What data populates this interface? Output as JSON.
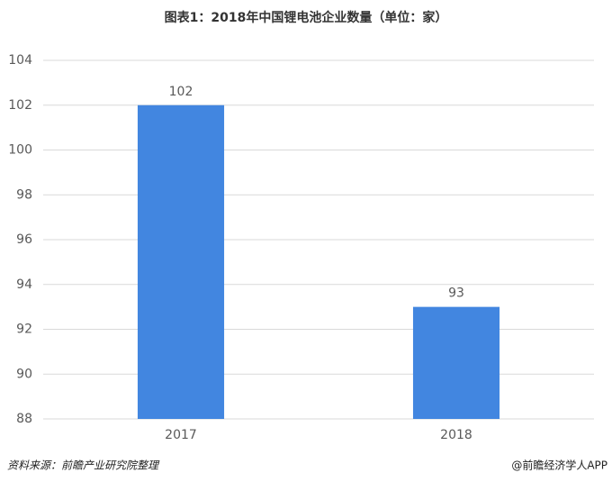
{
  "chart_data": {
    "type": "bar",
    "title": "图表1：2018年中国锂电池企业数量（单位：家）",
    "categories": [
      "2017",
      "2018"
    ],
    "values": [
      102,
      93
    ],
    "color": "#4286e0",
    "ylim": [
      88,
      104
    ],
    "yticks": [
      88,
      90,
      92,
      94,
      96,
      98,
      100,
      102,
      104
    ],
    "grid": true,
    "source": "资料来源：前瞻产业研究院整理",
    "credit": "@前瞻经济学人APP"
  }
}
